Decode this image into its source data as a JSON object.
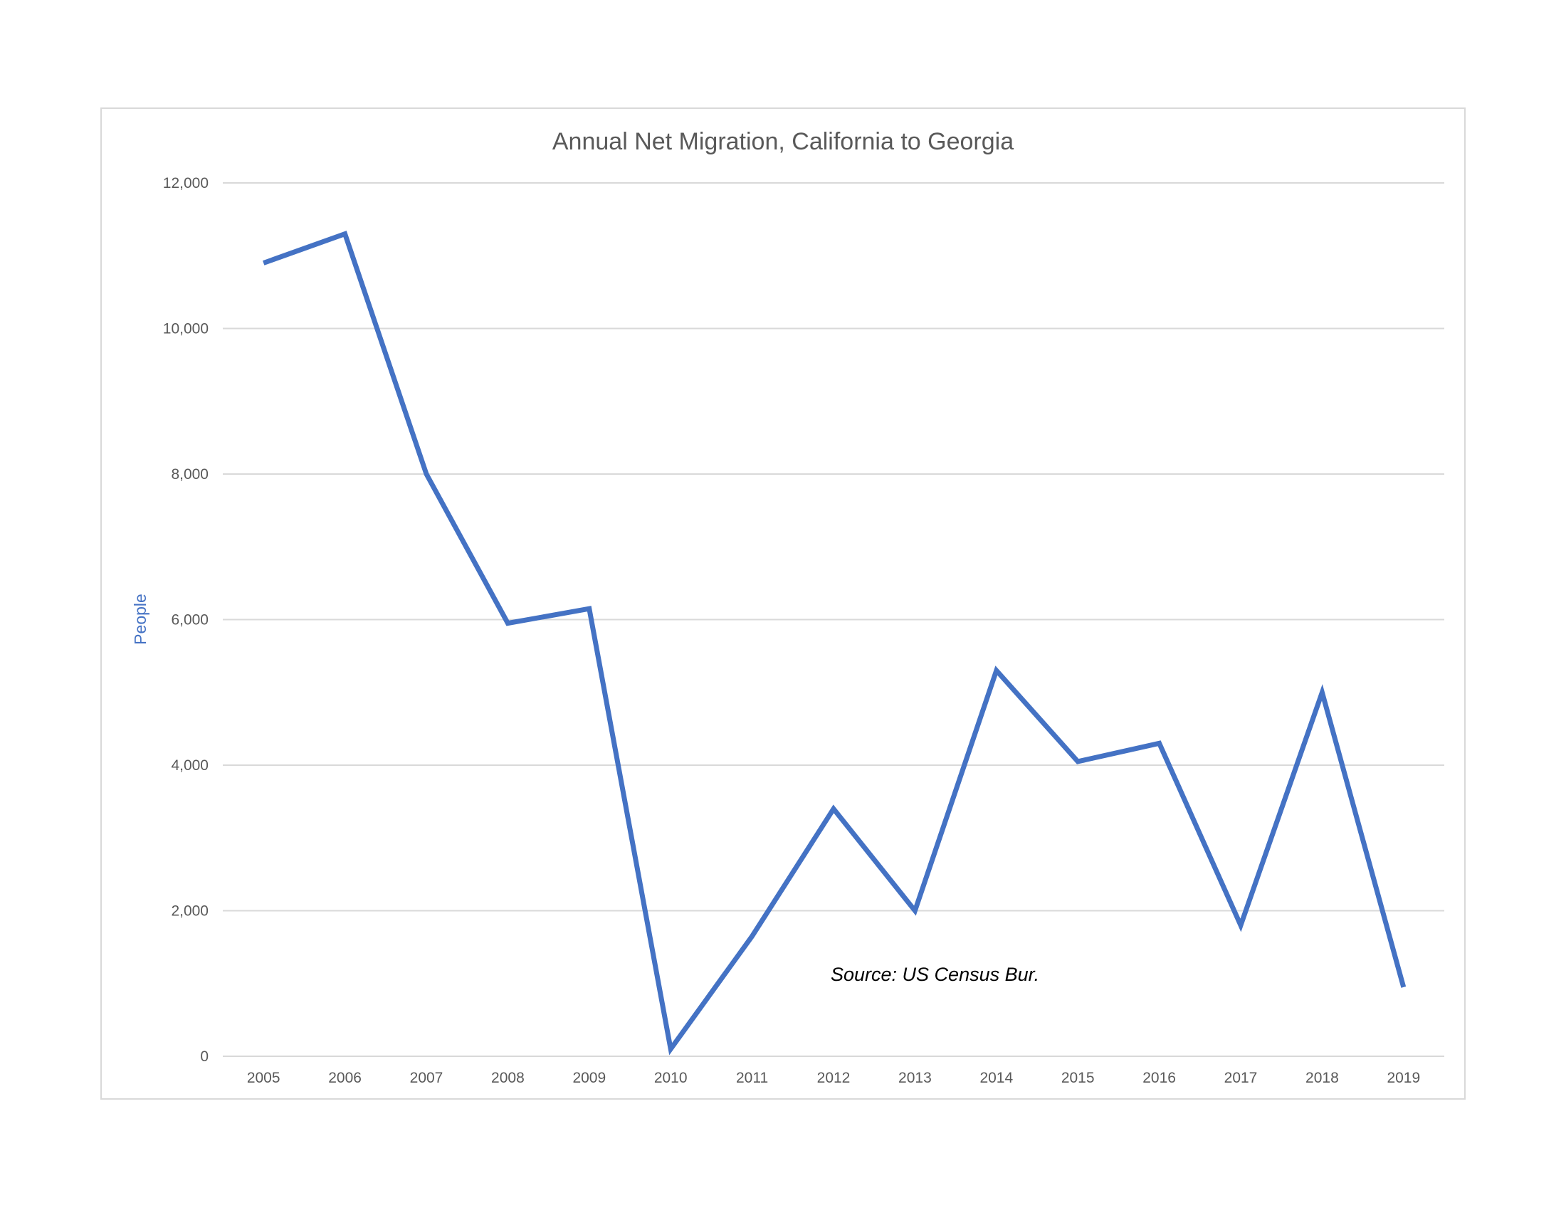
{
  "chart_data": {
    "type": "line",
    "title": "Annual Net Migration, California to Georgia",
    "xlabel": "",
    "ylabel": "People",
    "categories": [
      "2005",
      "2006",
      "2007",
      "2008",
      "2009",
      "2010",
      "2011",
      "2012",
      "2013",
      "2014",
      "2015",
      "2016",
      "2017",
      "2018",
      "2019"
    ],
    "series": [
      {
        "color": "#4472c4",
        "values": [
          10900,
          11300,
          8000,
          5950,
          6150,
          100,
          1650,
          3400,
          2000,
          5300,
          4050,
          4300,
          1800,
          5000,
          950
        ]
      }
    ],
    "ylim": [
      0,
      12000
    ],
    "yticks": [
      0,
      2000,
      4000,
      6000,
      8000,
      10000,
      12000
    ],
    "ytick_labels": [
      "0",
      "2,000",
      "4,000",
      "6,000",
      "8,000",
      "10,000",
      "12,000"
    ],
    "grid": true,
    "legend": "none",
    "annotation": "Source: US Census Bur."
  }
}
